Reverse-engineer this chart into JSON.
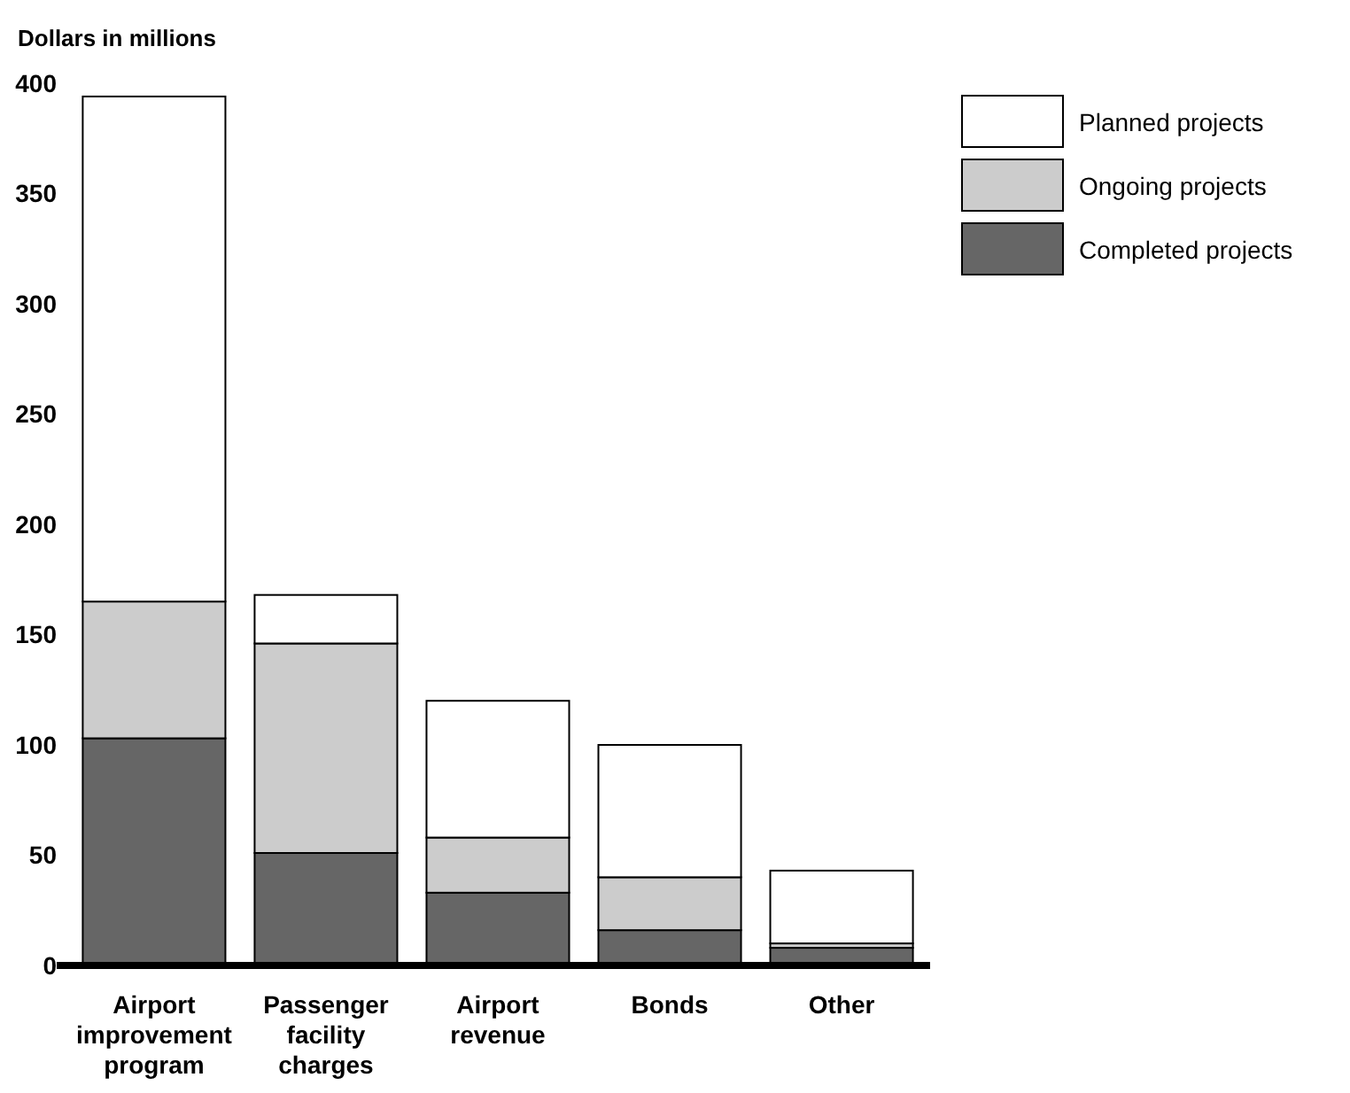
{
  "chart_data": {
    "type": "bar",
    "ylabel": "Dollars in millions",
    "categories": [
      "Airport improvement program",
      "Passenger facility charges",
      "Airport revenue",
      "Bonds",
      "Other"
    ],
    "stacked": true,
    "ylim": [
      0,
      400
    ],
    "yticks": [
      0,
      50,
      100,
      150,
      200,
      250,
      300,
      350,
      400
    ],
    "legend": "top right",
    "grid": false,
    "series": [
      {
        "name": "Completed projects",
        "color": "#666666",
        "values": [
          103,
          51,
          33,
          16,
          8
        ]
      },
      {
        "name": "Ongoing projects",
        "color": "#cccccc",
        "values": [
          62,
          95,
          25,
          24,
          2
        ]
      },
      {
        "name": "Planned projects",
        "color": "#ffffff",
        "values": [
          229,
          22,
          62,
          60,
          33
        ]
      }
    ]
  }
}
